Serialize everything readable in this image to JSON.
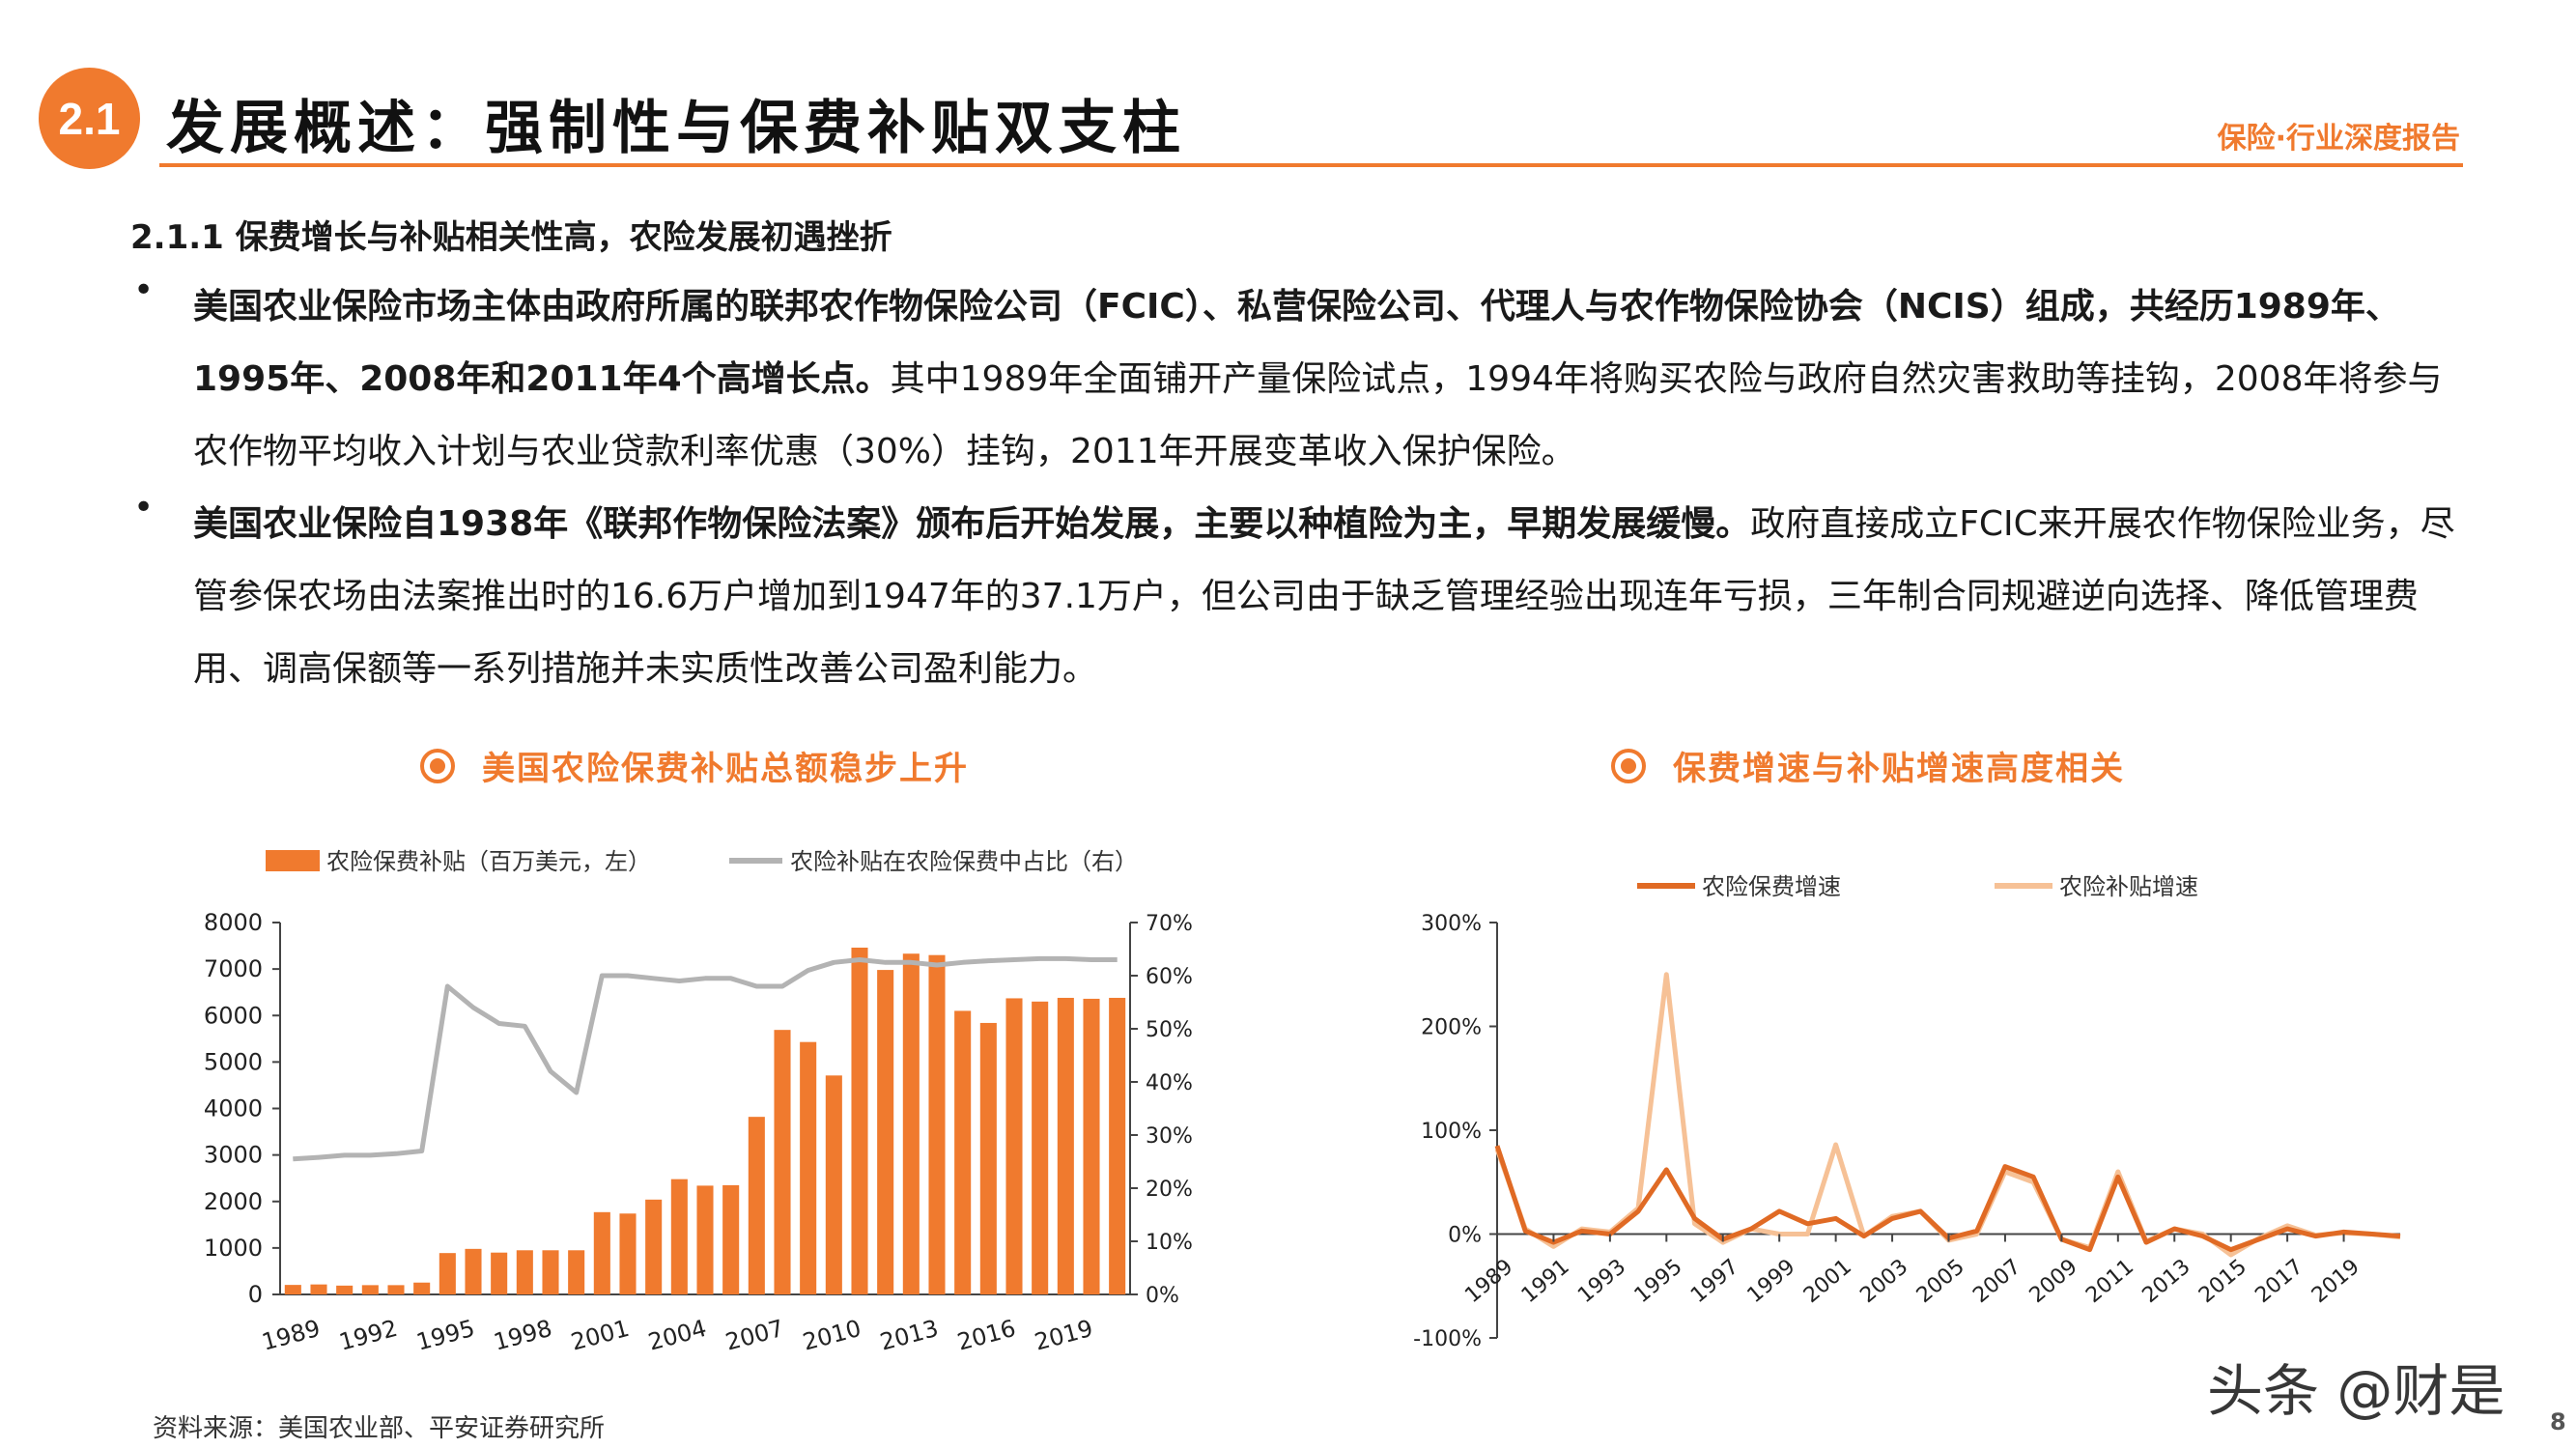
{
  "header": {
    "section_number": "2.1",
    "title": "发展概述：强制性与保费补贴双支柱",
    "report_tag": "保险·行业深度报告"
  },
  "subheading": "2.1.1 保费增长与补贴相关性高，农险发展初遇挫折",
  "bullets": [
    {
      "marker": "•",
      "bold": "美国农业保险市场主体由政府所属的联邦农作物保险公司（FCIC）、私营保险公司、代理人与农作物保险协会（NCIS）组成，共经历1989年、1995年、2008年和2011年4个高增长点。",
      "normal": "其中1989年全面铺开产量保险试点，1994年将购买农险与政府自然灾害救助等挂钩，2008年将参与农作物平均收入计划与农业贷款利率优惠（30%）挂钩，2011年开展变革收入保护保险。"
    },
    {
      "marker": "•",
      "bold": "美国农业保险自1938年《联邦作物保险法案》颁布后开始发展，主要以种植险为主，早期发展缓慢。",
      "normal": "政府直接成立FCIC来开展农作物保险业务，尽管参保农场由法案推出时的16.6万户增加到1947年的37.1万户，但公司由于缺乏管理经验出现连年亏损，三年制合同规避逆向选择、降低管理费用、调高保额等一系列措施并未实质性改善公司盈利能力。"
    }
  ],
  "chart_data": [
    {
      "type": "bar",
      "title": "美国农险保费补贴总额稳步上升",
      "categories": [
        "1989",
        "1990",
        "1991",
        "1992",
        "1993",
        "1994",
        "1995",
        "1996",
        "1997",
        "1998",
        "1999",
        "2000",
        "2001",
        "2002",
        "2003",
        "2004",
        "2005",
        "2006",
        "2007",
        "2008",
        "2009",
        "2010",
        "2011",
        "2012",
        "2013",
        "2014",
        "2015",
        "2016",
        "2017",
        "2018",
        "2019",
        "2020",
        "2021"
      ],
      "x_tick_labels": [
        "1989",
        "1992",
        "1995",
        "1998",
        "2001",
        "2004",
        "2007",
        "2010",
        "2013",
        "2016",
        "2019"
      ],
      "series": [
        {
          "name": "农险保费补贴（百万美元，左）",
          "axis": "left",
          "kind": "bar",
          "color": "#f07a2e",
          "values": [
            205,
            215,
            190,
            200,
            200,
            255,
            890,
            980,
            900,
            950,
            950,
            950,
            1770,
            1740,
            2040,
            2480,
            2340,
            2350,
            3820,
            5690,
            5430,
            4710,
            7460,
            6980,
            7330,
            7300,
            6100,
            5840,
            6370,
            6300,
            6380,
            6360,
            6380
          ]
        },
        {
          "name": "农险补贴在农险保费中占比（右）",
          "axis": "right",
          "kind": "line",
          "color": "#b3b3b3",
          "values": [
            25.5,
            25.8,
            26.2,
            26.2,
            26.5,
            27.0,
            58,
            54,
            51,
            50.5,
            42,
            38,
            60,
            60,
            59.5,
            59,
            59.5,
            59.5,
            58,
            58,
            61,
            62.5,
            63,
            62.5,
            62.5,
            62,
            62.5,
            62.8,
            63,
            63.2,
            63.2,
            63,
            63
          ]
        }
      ],
      "y_left": {
        "lim": [
          0,
          8000
        ],
        "ticks": [
          "0",
          "1000",
          "2000",
          "3000",
          "4000",
          "5000",
          "6000",
          "7000",
          "8000"
        ]
      },
      "y_right": {
        "lim": [
          0,
          70
        ],
        "ticks": [
          "0%",
          "10%",
          "20%",
          "30%",
          "40%",
          "50%",
          "60%",
          "70%"
        ]
      },
      "legend": "top"
    },
    {
      "type": "line",
      "title": "保费增速与补贴增速高度相关",
      "categories": [
        "1989",
        "1990",
        "1991",
        "1992",
        "1993",
        "1994",
        "1995",
        "1996",
        "1997",
        "1998",
        "1999",
        "2000",
        "2001",
        "2002",
        "2003",
        "2004",
        "2005",
        "2006",
        "2007",
        "2008",
        "2009",
        "2010",
        "2011",
        "2012",
        "2013",
        "2014",
        "2015",
        "2016",
        "2017",
        "2018",
        "2019",
        "2020",
        "2021"
      ],
      "x_tick_labels": [
        "1989",
        "1991",
        "1993",
        "1995",
        "1997",
        "1999",
        "2001",
        "2003",
        "2005",
        "2007",
        "2009",
        "2011",
        "2013",
        "2015",
        "2017",
        "2019"
      ],
      "series": [
        {
          "name": "农险保费增速",
          "color": "#e06a24",
          "values": [
            85,
            3,
            -8,
            3,
            0,
            22,
            62,
            15,
            -5,
            5,
            22,
            10,
            15,
            -2,
            15,
            22,
            -4,
            3,
            65,
            55,
            -5,
            -15,
            55,
            -8,
            5,
            -2,
            -15,
            -5,
            5,
            -2,
            2,
            0,
            -2
          ]
        },
        {
          "name": "农险补贴增速",
          "color": "#f6c196",
          "values": [
            82,
            5,
            -12,
            5,
            2,
            25,
            250,
            10,
            -8,
            5,
            0,
            0,
            86,
            -2,
            17,
            22,
            -6,
            0,
            60,
            50,
            -5,
            -13,
            60,
            -7,
            5,
            0,
            -20,
            -4,
            8,
            -1,
            1,
            0,
            -3
          ]
        }
      ],
      "y": {
        "lim": [
          -100,
          300
        ],
        "ticks": [
          "-100%",
          "0%",
          "100%",
          "200%",
          "300%"
        ]
      },
      "legend": "top"
    }
  ],
  "footer": {
    "source": "资料来源：美国农业部、平安证券研究所",
    "page_number": "8",
    "watermark": "头条 @财是"
  }
}
